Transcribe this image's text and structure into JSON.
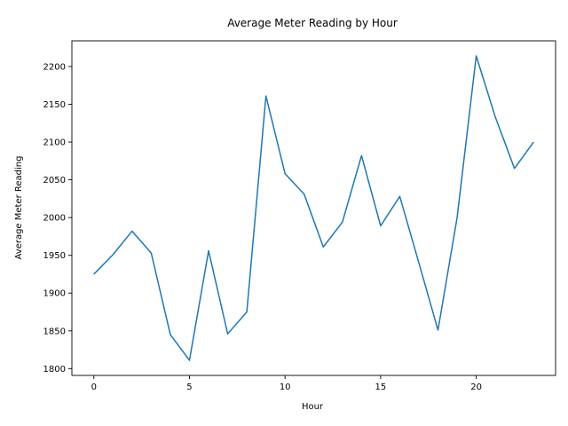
{
  "chart_data": {
    "type": "line",
    "title": "Average Meter Reading by Hour",
    "xlabel": "Hour",
    "ylabel": "Average Meter Reading",
    "xlim": [
      -1.15,
      24.15
    ],
    "ylim": [
      1791,
      2234
    ],
    "xticks": [
      0,
      5,
      10,
      15,
      20
    ],
    "yticks": [
      1800,
      1850,
      1900,
      1950,
      2000,
      2050,
      2100,
      2150,
      2200
    ],
    "grid": false,
    "x": [
      0,
      1,
      2,
      3,
      4,
      5,
      6,
      7,
      8,
      9,
      10,
      11,
      12,
      13,
      14,
      15,
      16,
      17,
      18,
      19,
      20,
      21,
      22,
      23
    ],
    "series": [
      {
        "color": "#1f77b4",
        "values": [
          1925,
          1951,
          1982,
          1953,
          1845,
          1811,
          1956,
          1846,
          1875,
          2161,
          2058,
          2031,
          1961,
          1994,
          2082,
          1989,
          2028,
          1940,
          1851,
          2000,
          2214,
          2133,
          2065,
          2100
        ]
      }
    ]
  }
}
